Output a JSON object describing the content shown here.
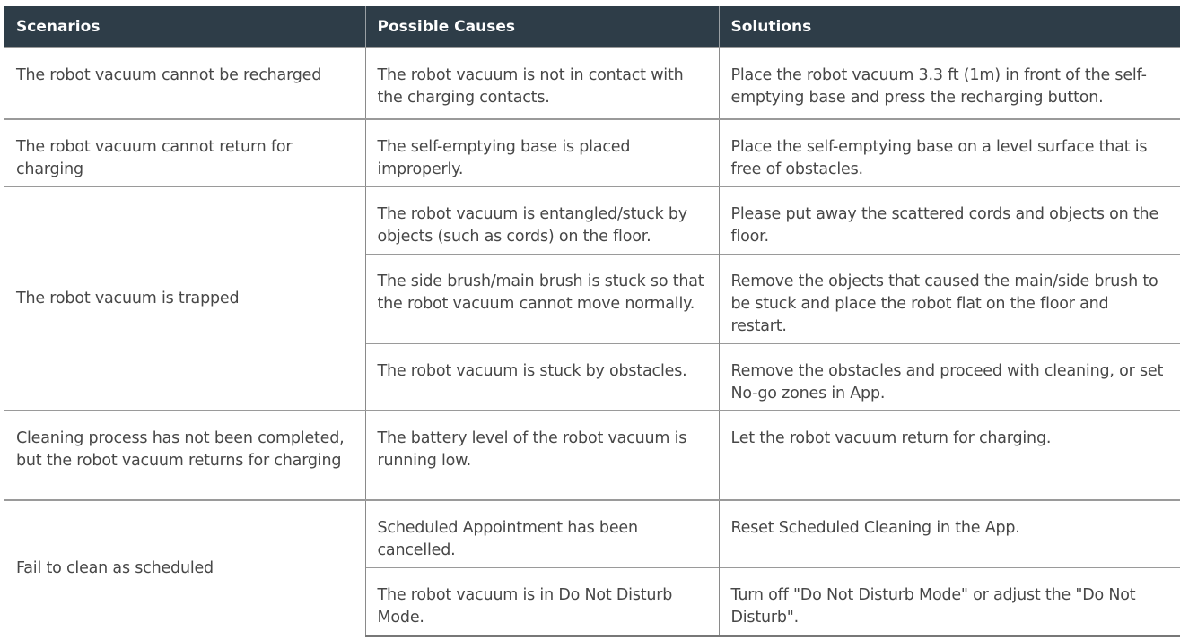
{
  "headers": [
    "Scenarios",
    "Possible Causes",
    "Solutions"
  ],
  "rows": [
    {
      "scenario": "The robot vacuum cannot be recharged",
      "items": [
        {
          "cause": "The robot vacuum is not in contact with the charging contacts.",
          "solution": "Place the robot vacuum 3.3 ft (1m) in front of the self-emptying base and press the recharging button."
        }
      ]
    },
    {
      "scenario": "The robot vacuum cannot return for charging",
      "items": [
        {
          "cause": "The self-emptying base is placed improperly.",
          "solution": "Place the self-emptying base on a level surface that is free of obstacles."
        }
      ]
    },
    {
      "scenario": "The robot vacuum is trapped",
      "items": [
        {
          "cause": "The robot vacuum is entangled/stuck by objects (such as cords) on the floor.",
          "solution": "Please put away the scattered cords and objects on the floor."
        },
        {
          "cause": "The side brush/main brush is stuck so that the robot vacuum cannot move normally.",
          "solution": "Remove the objects that caused the main/side brush to be stuck and place the robot flat on the floor and restart."
        },
        {
          "cause": "The robot vacuum is stuck by obstacles.",
          "solution": "Remove the obstacles and proceed with cleaning, or set No-go zones in App."
        }
      ]
    },
    {
      "scenario": "Cleaning process has not been completed, but the robot vacuum returns for charging",
      "items": [
        {
          "cause": "The battery level of the robot vacuum is running low.",
          "solution": "Let the robot vacuum return for charging."
        }
      ]
    },
    {
      "scenario": "Fail to clean as scheduled",
      "items": [
        {
          "cause": "Scheduled Appointment has been cancelled.",
          "solution": "Reset Scheduled Cleaning in the App."
        },
        {
          "cause": "The robot vacuum is in Do Not Disturb Mode.",
          "solution": "Turn off \"Do Not Disturb Mode\" or adjust the \"Do Not Disturb\"."
        }
      ]
    }
  ]
}
